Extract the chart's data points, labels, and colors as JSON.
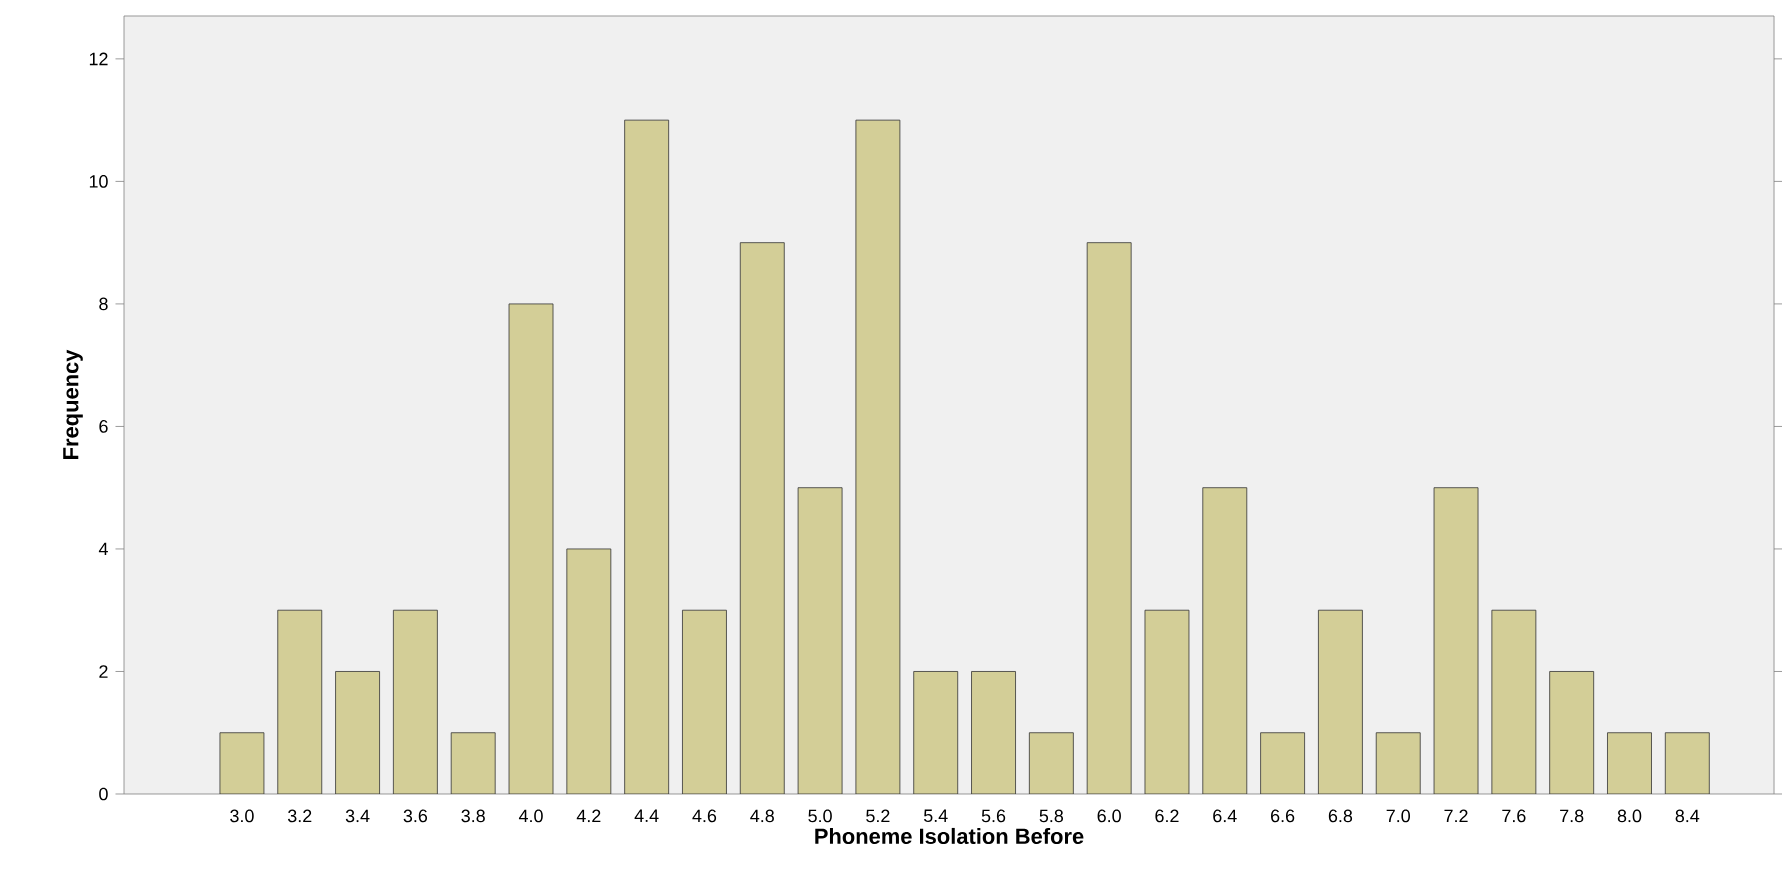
{
  "chart_data": {
    "type": "bar",
    "xlabel": "Phoneme Isolation Before",
    "ylabel": "Frequency",
    "categories": [
      "3.0",
      "3.2",
      "3.4",
      "3.6",
      "3.8",
      "4.0",
      "4.2",
      "4.4",
      "4.6",
      "4.8",
      "5.0",
      "5.2",
      "5.4",
      "5.6",
      "5.8",
      "6.0",
      "6.2",
      "6.4",
      "6.6",
      "6.8",
      "7.0",
      "7.2",
      "7.6",
      "7.8",
      "8.0",
      "8.4"
    ],
    "values": [
      1,
      3,
      2,
      3,
      1,
      8,
      4,
      11,
      3,
      9,
      5,
      11,
      2,
      2,
      1,
      9,
      3,
      5,
      1,
      3,
      1,
      5,
      3,
      2,
      1,
      1
    ],
    "color": "#d3ce97",
    "ylim": [
      0,
      12.7
    ],
    "yticks": [
      0,
      2,
      4,
      6,
      8,
      10,
      12
    ]
  }
}
